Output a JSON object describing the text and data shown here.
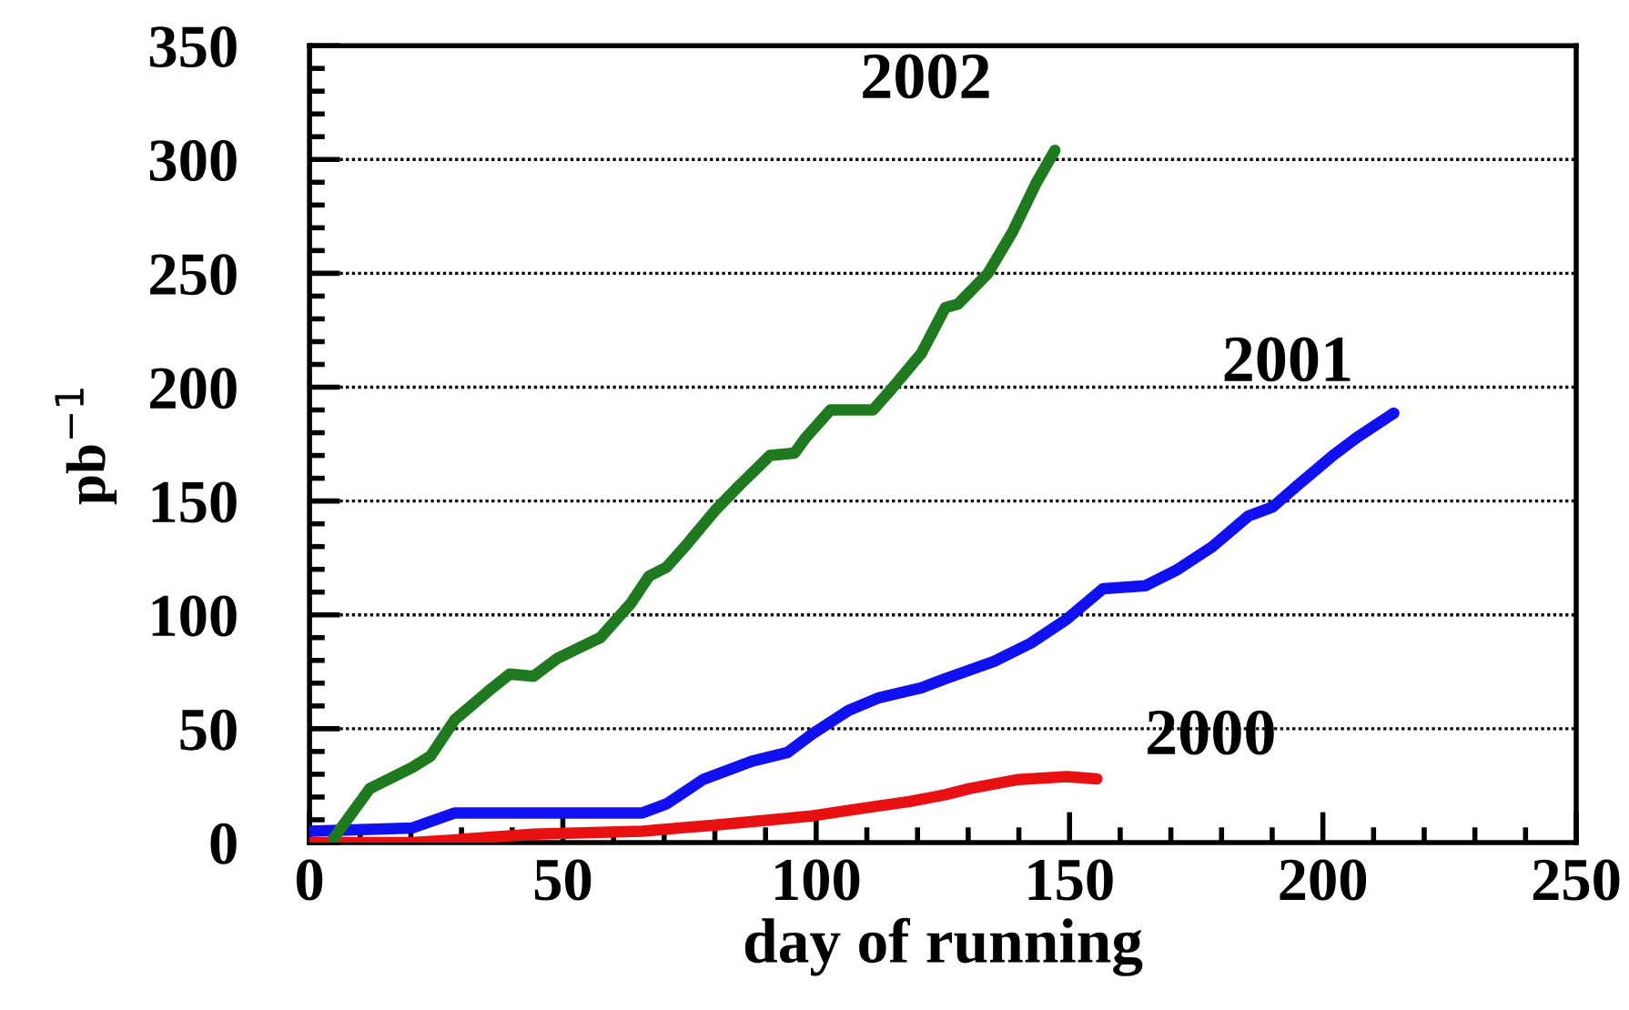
{
  "chart_data": {
    "type": "line",
    "xlabel": "day of running",
    "ylabel": "pb$^{−1}$",
    "xlim": [
      0,
      250
    ],
    "xticks": [
      0,
      50,
      100,
      150,
      200,
      250
    ],
    "ylim": [
      0,
      350
    ],
    "yticks": [
      0,
      50,
      100,
      150,
      200,
      250,
      300,
      350
    ],
    "grid": "y",
    "line_style": "solid",
    "series": [
      {
        "name": "2000",
        "color": "#e81010",
        "x": [
          0,
          20.3,
          27.5,
          44.2,
          65.7,
          80.1,
          99.2,
          111.2,
          118.4,
          125.5,
          130.3,
          139.9,
          149.4,
          155.4
        ],
        "values": [
          0,
          0,
          1,
          3.7,
          5,
          7.7,
          11.7,
          15.7,
          18,
          21,
          23.7,
          27.7,
          29,
          28
        ]
      },
      {
        "name": "2001",
        "color": "#1010f0",
        "x": [
          0,
          20.3,
          28.7,
          65.7,
          70.5,
          77.7,
          87.3,
          94.4,
          99.2,
          106.4,
          112.4,
          120.8,
          125.5,
          135.1,
          142.3,
          149.4,
          156.6,
          165,
          171,
          178.2,
          185.3,
          190.1,
          194.9,
          202,
          206.8,
          214
        ],
        "values": [
          5,
          6.4,
          13,
          13,
          17,
          27.7,
          35.7,
          39.6,
          47.6,
          58,
          63.6,
          68,
          72,
          79.6,
          87.5,
          98,
          111.5,
          112.8,
          119.5,
          130,
          143.4,
          147.4,
          156.7,
          170,
          178,
          188.6
        ]
      },
      {
        "name": "2002",
        "color": "#1f7a1f",
        "x": [
          4.8,
          11.9,
          20.3,
          23.9,
          28.7,
          35.9,
          39.5,
          44.2,
          49,
          55,
          57.4,
          63.4,
          67,
          70.5,
          74.1,
          80.1,
          84.9,
          90.9,
          95.7,
          98,
          102.8,
          111.2,
          114.8,
          120.8,
          125.5,
          128,
          133.9,
          138.7,
          143.5,
          147.1
        ],
        "values": [
          2,
          23.7,
          33,
          38,
          54,
          67.6,
          74,
          73,
          81,
          87.5,
          90,
          105,
          117,
          121,
          130,
          146,
          157,
          170,
          171,
          178,
          190,
          190,
          199,
          215,
          235,
          236.5,
          250,
          268,
          290,
          304
        ]
      }
    ]
  }
}
